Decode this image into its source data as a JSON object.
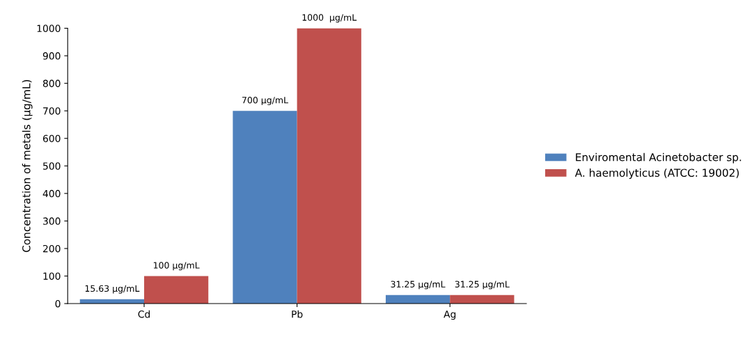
{
  "chart_data": {
    "type": "bar",
    "ylabel": "Concentration of metals (µg/mL)",
    "categories": [
      "Cd",
      "Pb",
      "Ag"
    ],
    "series": [
      {
        "name": "Enviromental Acinetobacter sp.",
        "color": "#4f81bd",
        "values": [
          15.63,
          700,
          31.25
        ],
        "value_labels": [
          "15.63 µg/mL",
          "700 µg/mL",
          "31.25 µg/mL"
        ]
      },
      {
        "name": "A. haemolyticus (ATCC: 19002)",
        "color": "#c0504d",
        "values": [
          100,
          1000,
          31.25
        ],
        "value_labels": [
          "100 µg/mL",
          "1000  µg/mL",
          "31.25 µg/mL"
        ]
      }
    ],
    "ylim": [
      0,
      1000
    ],
    "yticks": [
      0,
      100,
      200,
      300,
      400,
      500,
      600,
      700,
      800,
      900,
      1000
    ],
    "grid": false,
    "legend": "right"
  }
}
